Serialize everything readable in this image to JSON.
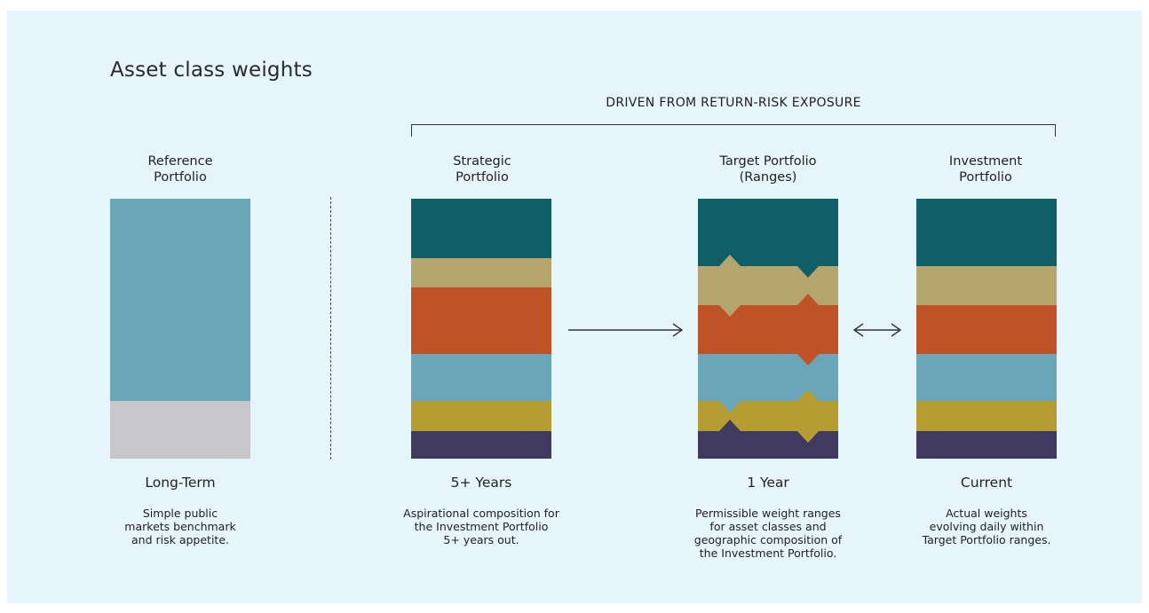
{
  "title": "Asset class weights",
  "driven_label": "DRIVEN FROM RETURN-RISK EXPOSURE",
  "colors": {
    "background": "#e6f4fb",
    "dark-teal": "#115f66",
    "khaki": "#b5a46c",
    "rust": "#bf5226",
    "steel-blue": "#6aa5b8",
    "mustard": "#b69d33",
    "navy-purple": "#403a5e",
    "gray": "#c7c7c9"
  },
  "columns": [
    {
      "heading": [
        "Reference",
        "Portfolio"
      ],
      "horizon": "Long-Term",
      "description": [
        "Simple public",
        "markets benchmark",
        "and risk appetite."
      ]
    },
    {
      "heading": [
        "Strategic",
        "Portfolio"
      ],
      "horizon": "5+ Years",
      "description": [
        "Aspirational composition for",
        "the Investment Portfolio",
        "5+ years out."
      ]
    },
    {
      "heading": [
        "Target Portfolio",
        "(Ranges)"
      ],
      "horizon": "1 Year",
      "description": [
        "Permissible weight ranges",
        "for asset classes and",
        "geographic composition of",
        "the Investment Portfolio."
      ]
    },
    {
      "heading": [
        "Investment",
        "Portfolio"
      ],
      "horizon": "Current",
      "description": [
        "Actual weights",
        "evolving daily within",
        "Target Portfolio ranges."
      ]
    }
  ]
}
